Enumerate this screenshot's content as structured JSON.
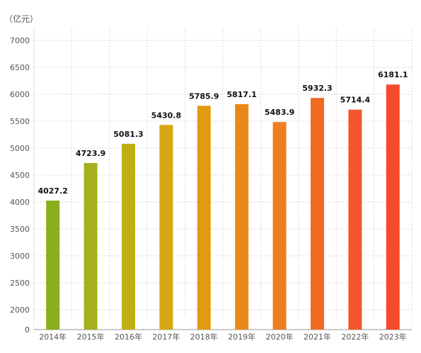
{
  "unit_label": "（亿元）",
  "chart_data": {
    "type": "bar",
    "categories": [
      "2014年",
      "2015年",
      "2016年",
      "2017年",
      "2018年",
      "2019年",
      "2020年",
      "2021年",
      "2022年",
      "2023年"
    ],
    "values": [
      4027.2,
      4723.9,
      5081.3,
      5430.8,
      5785.9,
      5817.1,
      5483.9,
      5932.3,
      5714.4,
      6181.1
    ],
    "value_labels": [
      "4027.2",
      "4723.9",
      "5081.3",
      "5430.8",
      "5785.9",
      "5817.1",
      "5483.9",
      "5932.3",
      "5714.4",
      "6181.1"
    ],
    "bar_colors": [
      "#8aae1c",
      "#a5b01c",
      "#bfaf15",
      "#d6a710",
      "#e29a10",
      "#e98a18",
      "#ef7e20",
      "#f06a24",
      "#f2562a",
      "#f44a2e"
    ],
    "ytick_values": [
      2000,
      2500,
      3000,
      3500,
      4000,
      4500,
      5000,
      5500,
      6000,
      6500,
      7000
    ],
    "ytick_labels": [
      "2000",
      "2500",
      "3000",
      "3500",
      "4000",
      "4500",
      "5000",
      "5500",
      "6000",
      "6500",
      "7000"
    ],
    "y_zero_label": "0",
    "ylim": [
      1700,
      7300
    ],
    "axis_break": true,
    "grid": true
  }
}
